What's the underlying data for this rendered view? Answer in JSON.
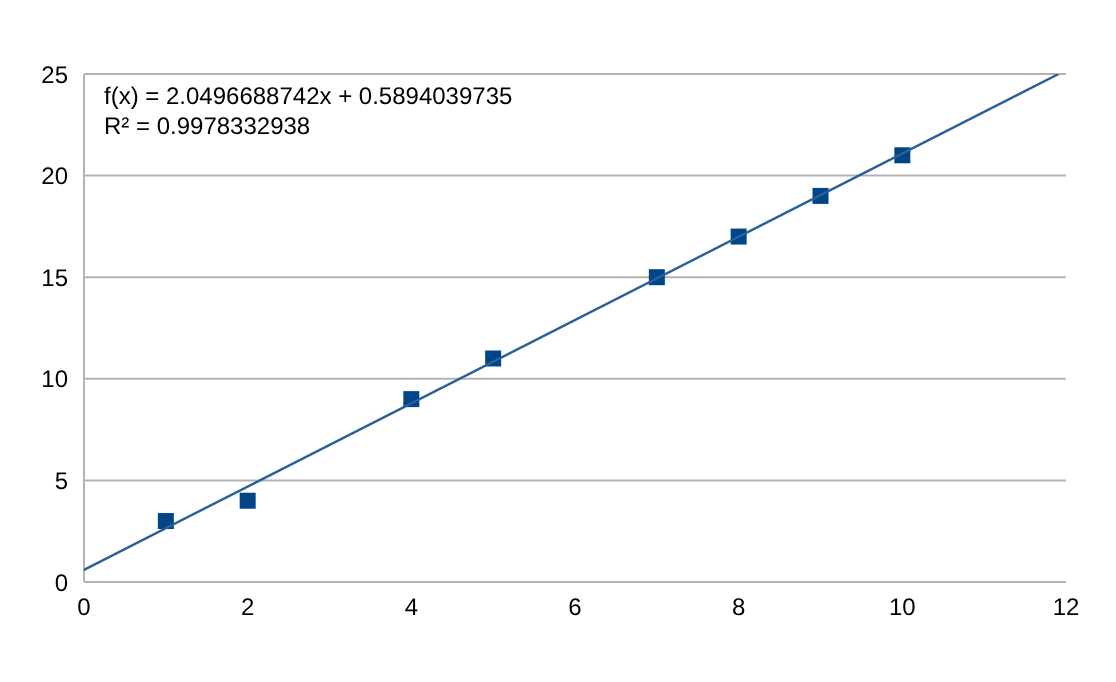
{
  "chart_data": {
    "type": "scatter",
    "grid": "y",
    "legend": false,
    "xlim": [
      0,
      12
    ],
    "xticks": [
      0,
      2,
      4,
      6,
      8,
      10,
      12
    ],
    "ylim": [
      0,
      25
    ],
    "yticks": [
      0,
      5,
      10,
      15,
      20,
      25
    ],
    "annotations": [
      "f(x) = 2.0496688742x + 0.5894039735",
      "R² = 0.9978332938"
    ],
    "series": [
      {
        "marker": "square",
        "color": "#004586",
        "x": [
          1,
          2,
          4,
          5,
          7,
          8,
          9,
          10
        ],
        "values": [
          3,
          4,
          9,
          11,
          15,
          17,
          19,
          21
        ]
      },
      {
        "type": "line",
        "marker": "none",
        "color": "#2a6099",
        "x": [
          0,
          11.91
        ],
        "values": [
          0.6,
          25
        ]
      }
    ]
  }
}
